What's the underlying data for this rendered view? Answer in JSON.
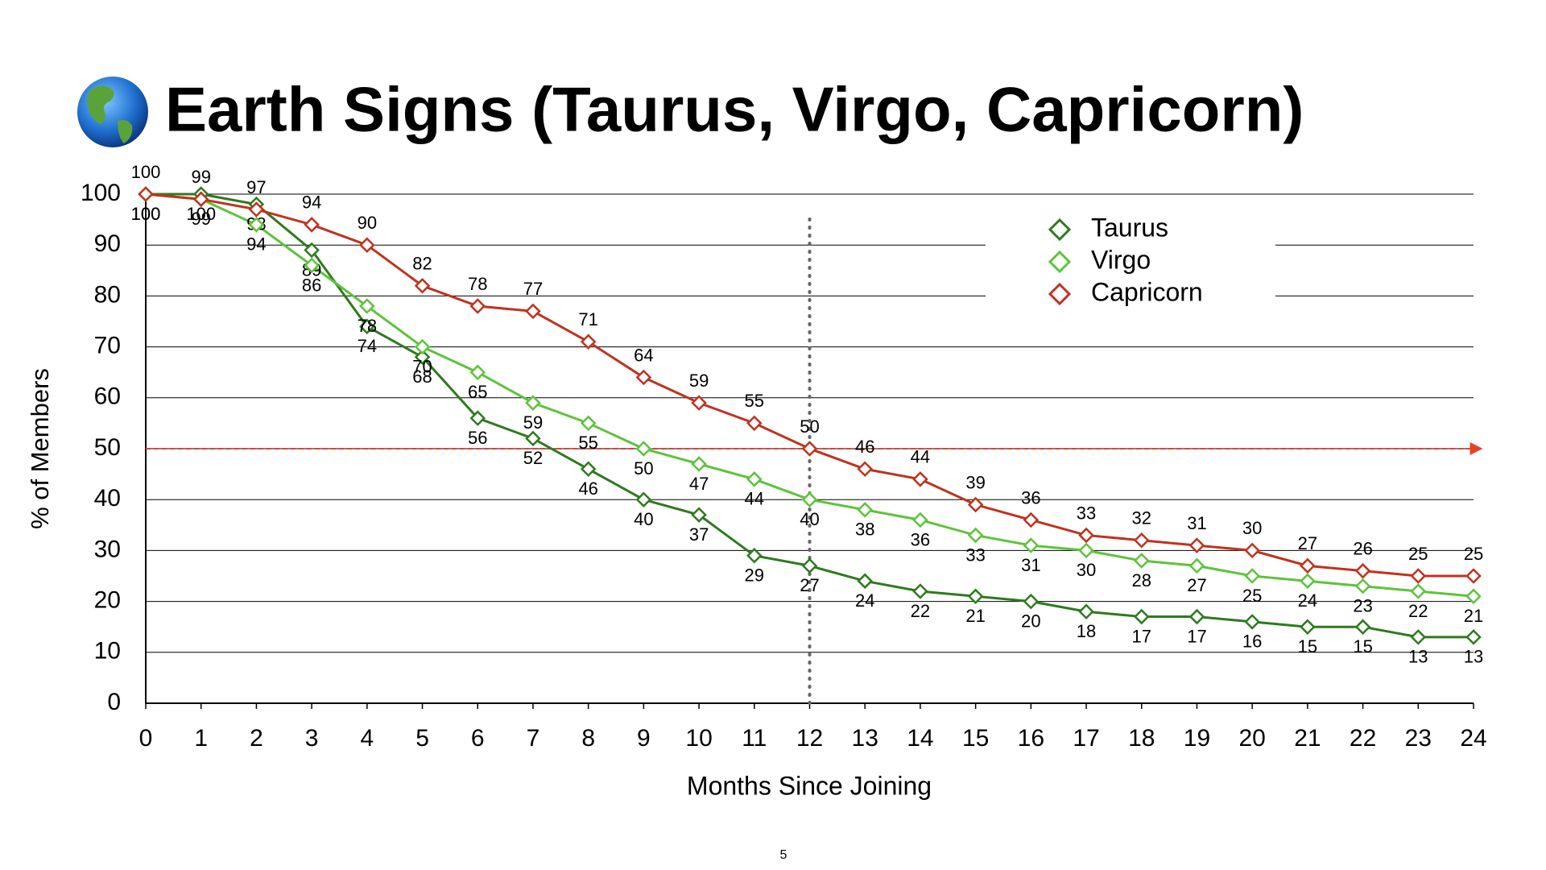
{
  "chart_data": {
    "type": "line",
    "title": "Earth Signs (Taurus, Virgo, Capricorn)",
    "x_label": "Months Since Joining",
    "y_label": "% of Members",
    "x": [
      0,
      1,
      2,
      3,
      4,
      5,
      6,
      7,
      8,
      9,
      10,
      11,
      12,
      13,
      14,
      15,
      16,
      17,
      18,
      19,
      20,
      21,
      22,
      23,
      24
    ],
    "series": [
      {
        "name": "Taurus",
        "color": "#2e7a1e",
        "label_side": "below",
        "values": [
          100,
          100,
          98,
          89,
          74,
          68,
          56,
          52,
          46,
          40,
          37,
          29,
          27,
          24,
          22,
          21,
          20,
          18,
          17,
          17,
          16,
          15,
          15,
          13,
          13
        ]
      },
      {
        "name": "Virgo",
        "color": "#5cc43a",
        "label_side": "below",
        "values": [
          100,
          99,
          94,
          86,
          78,
          70,
          65,
          59,
          55,
          50,
          47,
          44,
          40,
          38,
          36,
          33,
          31,
          30,
          28,
          27,
          25,
          24,
          23,
          22,
          21
        ]
      },
      {
        "name": "Capricorn",
        "color": "#c0321e",
        "label_side": "above",
        "values": [
          100,
          99,
          97,
          94,
          90,
          82,
          78,
          77,
          71,
          64,
          59,
          55,
          50,
          46,
          44,
          39,
          36,
          33,
          32,
          31,
          30,
          27,
          26,
          25,
          25
        ]
      }
    ],
    "xlim": [
      0,
      24
    ],
    "xticks": [
      0,
      1,
      2,
      3,
      4,
      5,
      6,
      7,
      8,
      9,
      10,
      11,
      12,
      13,
      14,
      15,
      16,
      17,
      18,
      19,
      20,
      21,
      22,
      23,
      24
    ],
    "ylim": [
      0,
      100
    ],
    "yticks": [
      0,
      10,
      20,
      30,
      40,
      50,
      60,
      70,
      80,
      90,
      100
    ],
    "grid": true,
    "legend": "upper right",
    "reference_lines": [
      {
        "axis": "x",
        "value": 12,
        "color": "#666666"
      },
      {
        "axis": "y",
        "value": 50,
        "color": "#e8402a"
      }
    ]
  },
  "page_number": "5"
}
